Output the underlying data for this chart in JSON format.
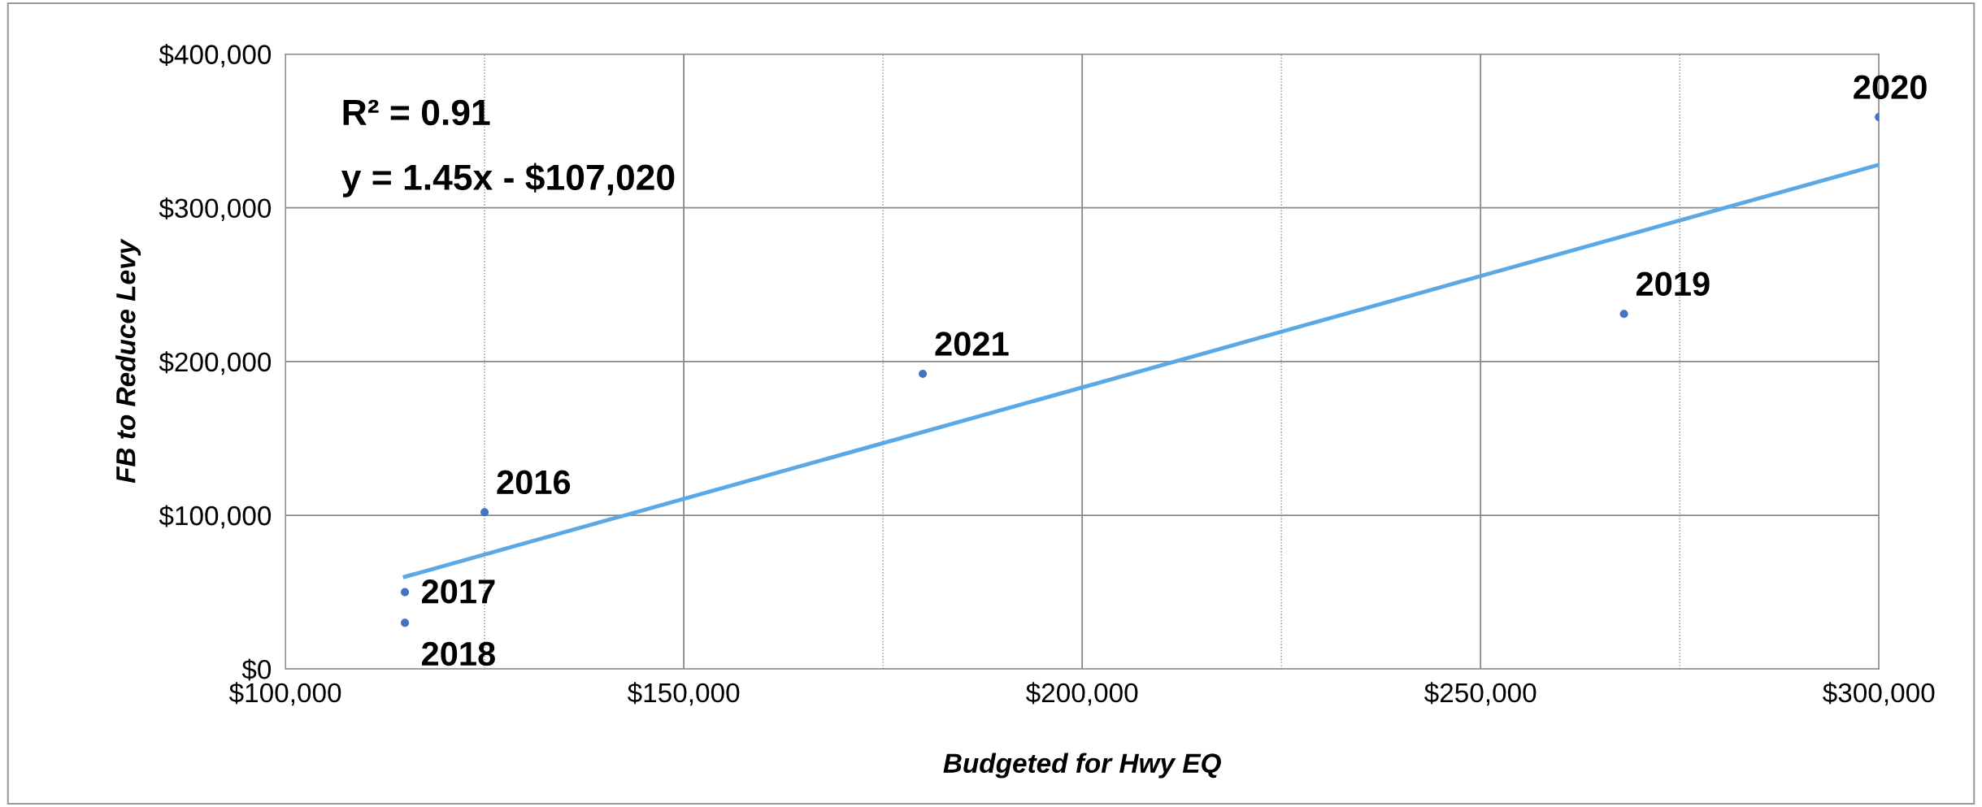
{
  "chart_data": {
    "type": "scatter",
    "xlabel": "Budgeted for Hwy EQ",
    "ylabel": "FB to Reduce Levy",
    "x": [
      125000,
      115000,
      115000,
      268000,
      300000,
      180000
    ],
    "series": [
      {
        "color": "#4472c4",
        "marker": "circle",
        "values": [
          102000,
          50000,
          30000,
          231000,
          359000,
          192000
        ]
      },
      {
        "type": "line",
        "color": "#5aa9e6",
        "x": [
          115000,
          300000
        ],
        "values": [
          60000,
          328000
        ]
      }
    ],
    "xlim": [
      100000,
      300000
    ],
    "ylim": [
      0,
      400000
    ],
    "xticks": [
      {
        "value": 100000,
        "label": "$100,000"
      },
      {
        "value": 125000,
        "label": null
      },
      {
        "value": 150000,
        "label": "$150,000"
      },
      {
        "value": 175000,
        "label": null
      },
      {
        "value": 200000,
        "label": "$200,000"
      },
      {
        "value": 225000,
        "label": null
      },
      {
        "value": 250000,
        "label": "$250,000"
      },
      {
        "value": 275000,
        "label": null
      },
      {
        "value": 300000,
        "label": "$300,000"
      }
    ],
    "yticks": [
      {
        "value": 0,
        "label": "$0"
      },
      {
        "value": 100000,
        "label": "$100,000"
      },
      {
        "value": 200000,
        "label": "$200,000"
      },
      {
        "value": 300000,
        "label": "$300,000"
      },
      {
        "value": 400000,
        "label": "$400,000"
      }
    ],
    "grid": true,
    "legend": false,
    "annotations": [
      "R² = 0.91",
      "y = 1.45x - $107,020",
      {
        "text": "2016",
        "x": 125000,
        "y": 102000
      },
      {
        "text": "2017",
        "x": 115000,
        "y": 50000
      },
      {
        "text": "2018",
        "x": 115000,
        "y": 30000
      },
      {
        "text": "2019",
        "x": 268000,
        "y": 231000
      },
      {
        "text": "2020",
        "x": 300000,
        "y": 359000
      },
      {
        "text": "2021",
        "x": 180000,
        "y": 192000
      }
    ]
  }
}
